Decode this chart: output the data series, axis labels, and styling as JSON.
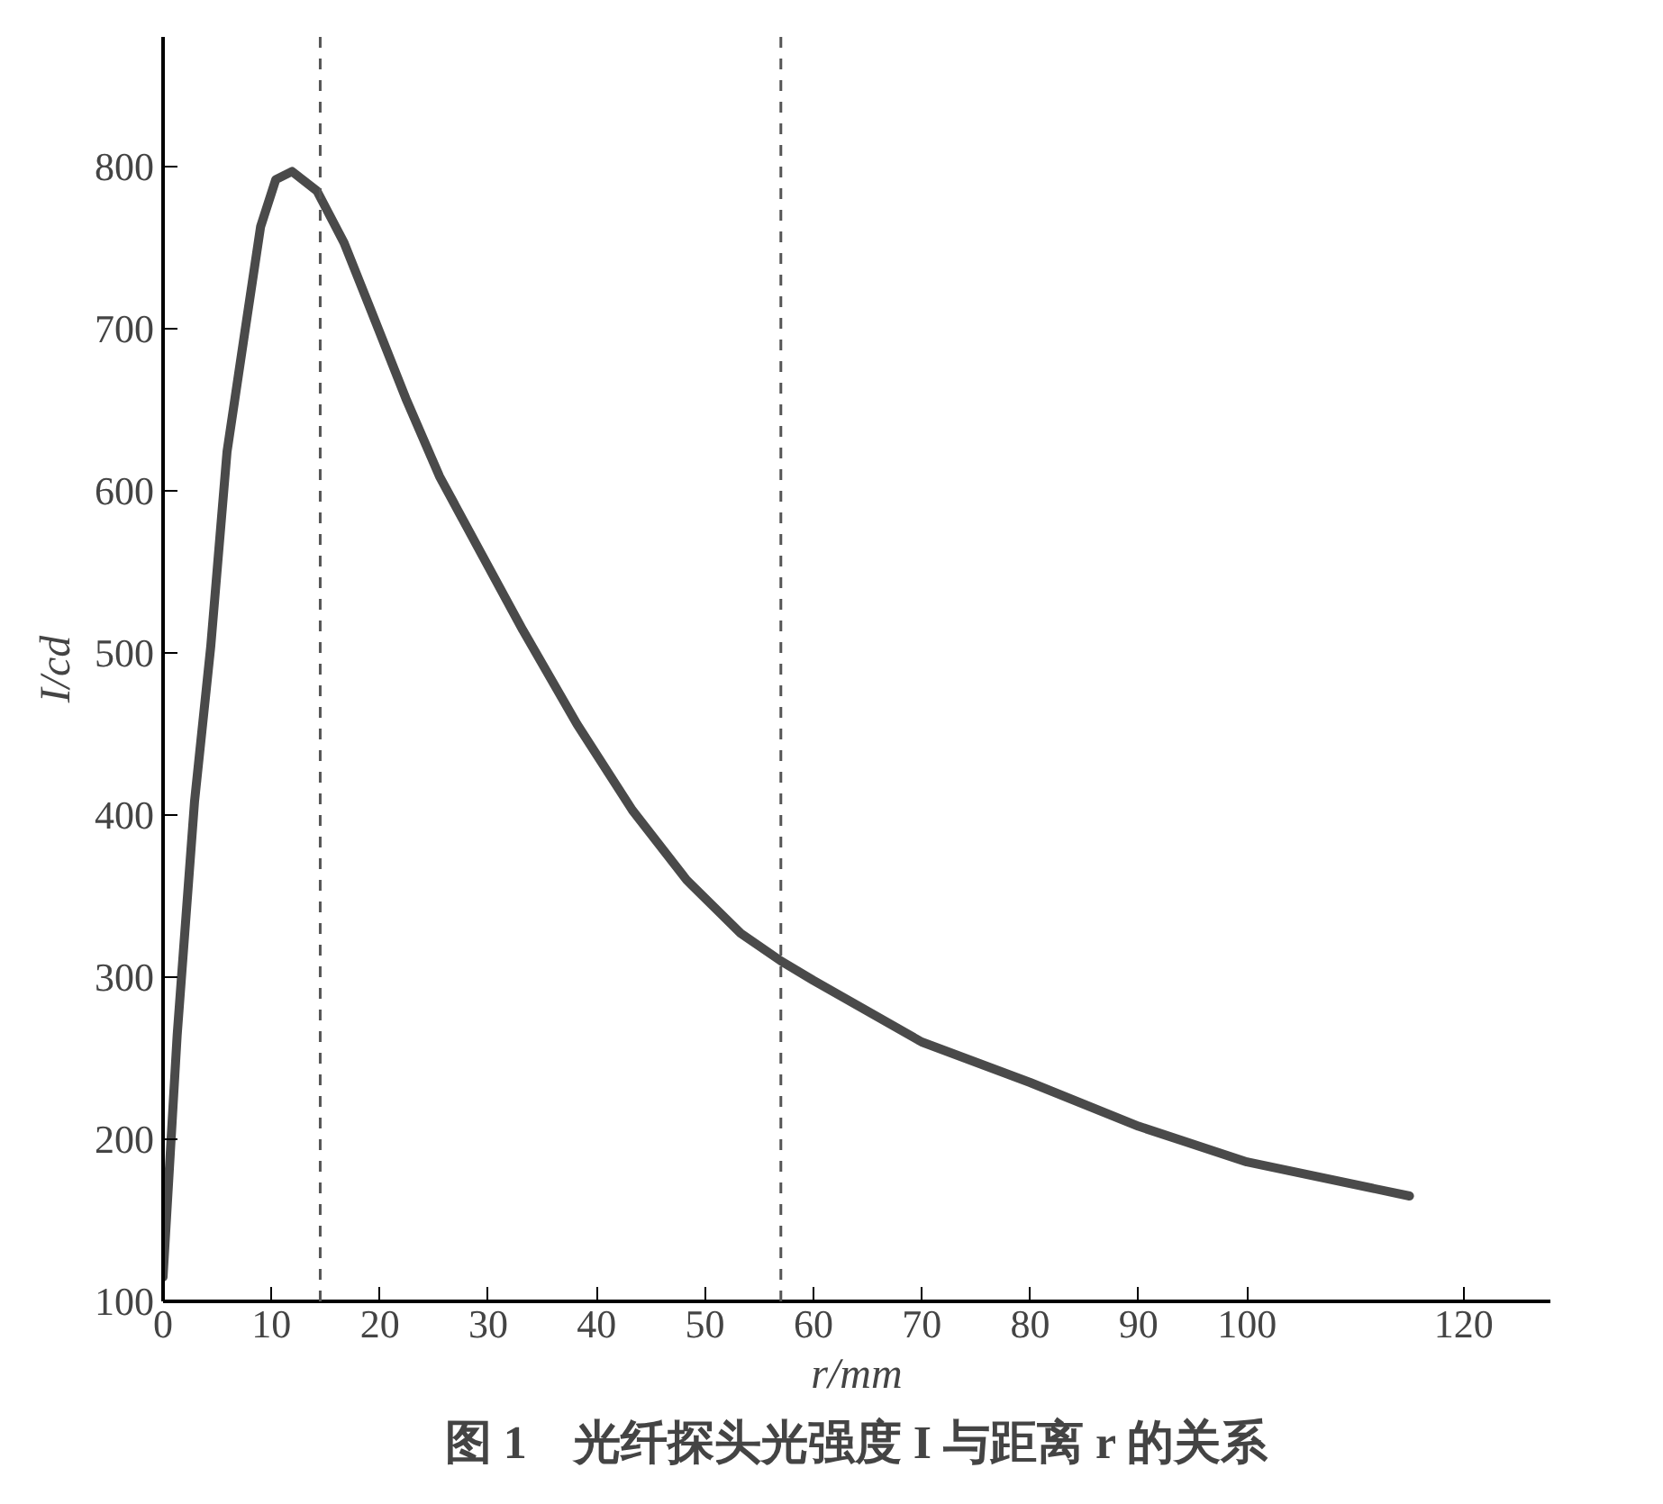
{
  "chart_data": {
    "type": "line",
    "title": "图 1　光纤探头光强度 I 与距离 r 的关系",
    "xlabel": "r/mm",
    "ylabel": "I/cd",
    "x": [
      0,
      1.3,
      2.9,
      4.4,
      5.9,
      7.5,
      9,
      10.4,
      11.9,
      14.2,
      16.7,
      19.2,
      22.4,
      25.5,
      29.3,
      33.2,
      38.2,
      43.3,
      48.3,
      53.3,
      57,
      60,
      70,
      80,
      90,
      100,
      115
    ],
    "series": [
      {
        "color": "#4a4a4a",
        "values": [
          115,
          264,
          408,
          504,
          624,
          696,
          763,
          792,
          797,
          785,
          753,
          711,
          657,
          609,
          562,
          514,
          456,
          403,
          360,
          327,
          310,
          298,
          260,
          235,
          208,
          186,
          165
        ]
      }
    ],
    "xlim": [
      0,
      128
    ],
    "xticks": [
      0,
      10,
      20,
      30,
      40,
      50,
      60,
      70,
      80,
      90,
      100,
      120
    ],
    "ylim": [
      100,
      880
    ],
    "yticks": [
      100,
      200,
      300,
      400,
      500,
      600,
      700,
      800
    ],
    "ref_lines": [
      {
        "axis": "x",
        "value": 14.5,
        "color": "#555555",
        "line_style": "dashed"
      },
      {
        "axis": "x",
        "value": 57,
        "color": "#555555",
        "line_style": "dashed"
      }
    ],
    "grid": false,
    "marker": "none",
    "line_style": "solid"
  }
}
